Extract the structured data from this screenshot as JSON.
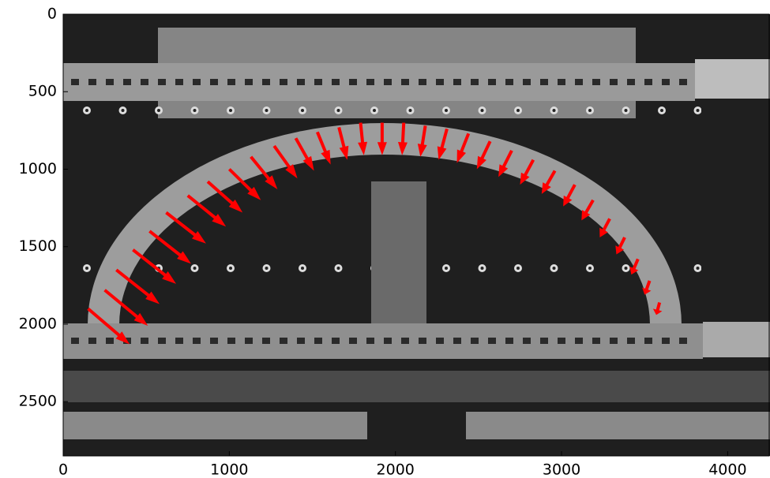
{
  "chart_data": {
    "type": "quiver",
    "color": "#ff0000",
    "xlim": [
      0,
      4250
    ],
    "ylim": [
      2850,
      0
    ],
    "xticks": [
      0,
      1000,
      2000,
      3000,
      4000
    ],
    "yticks": [
      0,
      500,
      1000,
      1500,
      2000,
      2500
    ],
    "x": [
      150,
      250,
      320,
      420,
      520,
      620,
      750,
      870,
      1000,
      1130,
      1270,
      1400,
      1530,
      1660,
      1790,
      1920,
      2050,
      2180,
      2310,
      2440,
      2570,
      2700,
      2830,
      2960,
      3080,
      3190,
      3290,
      3380,
      3460,
      3530,
      3590
    ],
    "y": [
      1900,
      1780,
      1650,
      1520,
      1400,
      1280,
      1170,
      1080,
      1000,
      920,
      850,
      800,
      760,
      730,
      700,
      700,
      700,
      720,
      740,
      770,
      820,
      880,
      940,
      1010,
      1100,
      1200,
      1320,
      1440,
      1580,
      1720,
      1860
    ],
    "u": [
      250,
      260,
      260,
      260,
      250,
      240,
      230,
      210,
      190,
      160,
      140,
      110,
      80,
      50,
      20,
      0,
      -10,
      -30,
      -50,
      -70,
      -80,
      -80,
      -80,
      -80,
      -70,
      -70,
      -60,
      -50,
      -40,
      -30,
      -20
    ],
    "v": [
      230,
      230,
      220,
      220,
      210,
      200,
      200,
      200,
      200,
      210,
      210,
      210,
      210,
      210,
      210,
      210,
      210,
      200,
      200,
      190,
      180,
      170,
      160,
      150,
      140,
      130,
      120,
      110,
      100,
      90,
      80
    ]
  }
}
